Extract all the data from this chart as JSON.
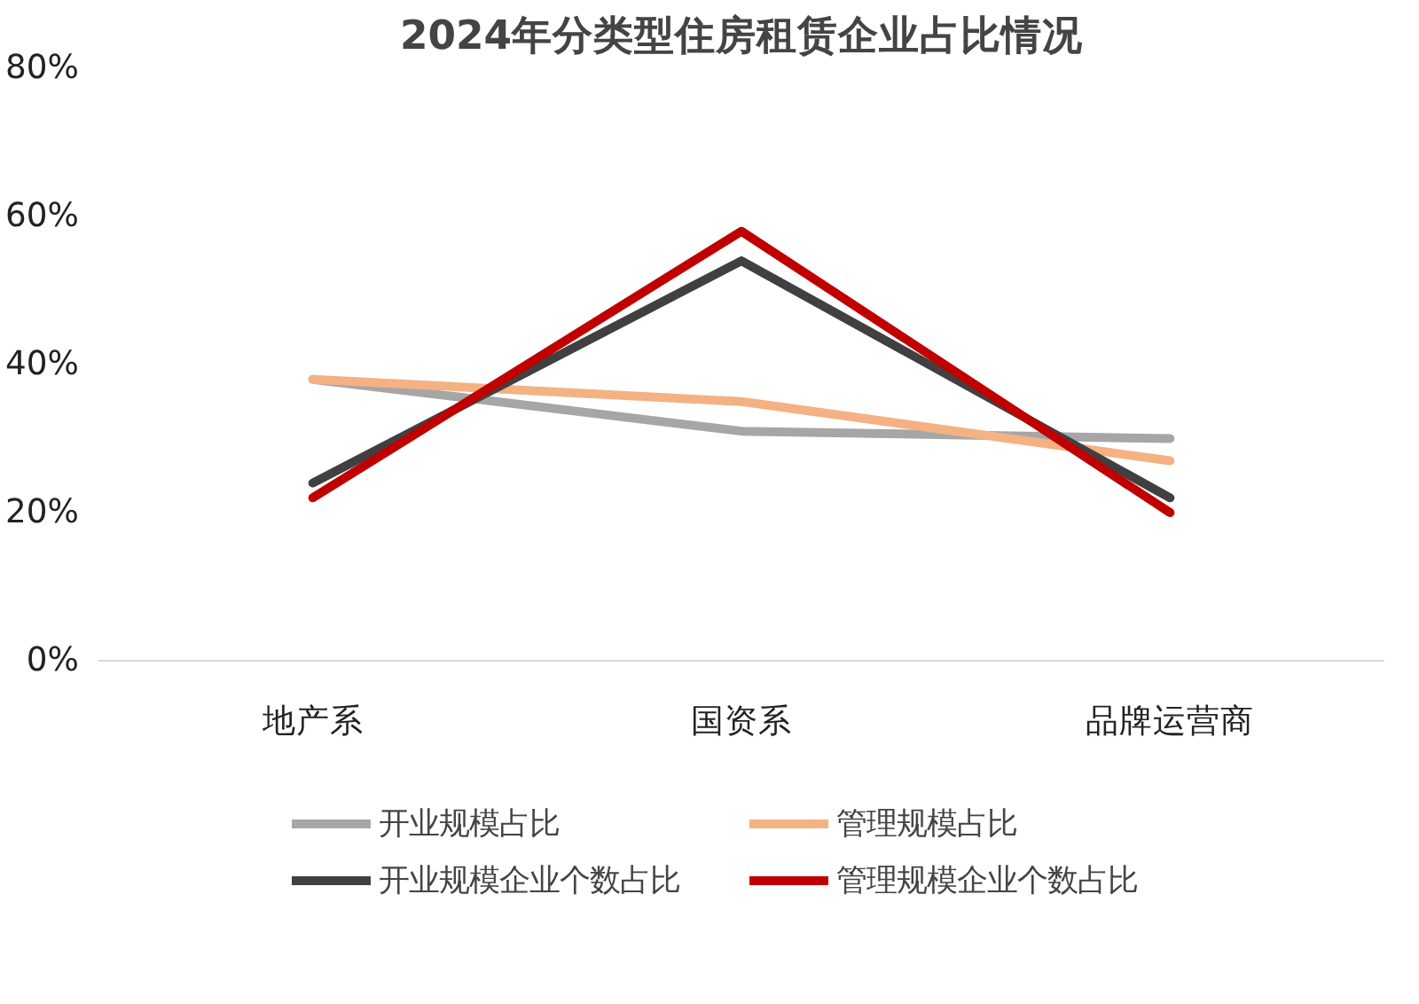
{
  "chart_data": {
    "type": "line",
    "title": "2024年分类型住房租赁企业占比情况",
    "categories": [
      "地产系",
      "国资系",
      "品牌运营商"
    ],
    "series": [
      {
        "name": "开业规模占比",
        "color": "#a6a6a6",
        "values": [
          38,
          31,
          30
        ]
      },
      {
        "name": "管理规模占比",
        "color": "#f4b183",
        "values": [
          38,
          35,
          27
        ]
      },
      {
        "name": "开业规模企业个数占比",
        "color": "#404040",
        "values": [
          24,
          54,
          22
        ]
      },
      {
        "name": "管理规模企业个数占比",
        "color": "#c00000",
        "values": [
          22,
          58,
          20
        ]
      }
    ],
    "ylim": [
      0,
      80
    ],
    "yticks": [
      {
        "value": 0,
        "label": "0%"
      },
      {
        "value": 20,
        "label": "20%"
      },
      {
        "value": 40,
        "label": "40%"
      },
      {
        "value": 60,
        "label": "60%"
      },
      {
        "value": 80,
        "label": "80%"
      }
    ],
    "grid": false,
    "legend": "bottom",
    "marker": "none",
    "line_style": "solid"
  }
}
